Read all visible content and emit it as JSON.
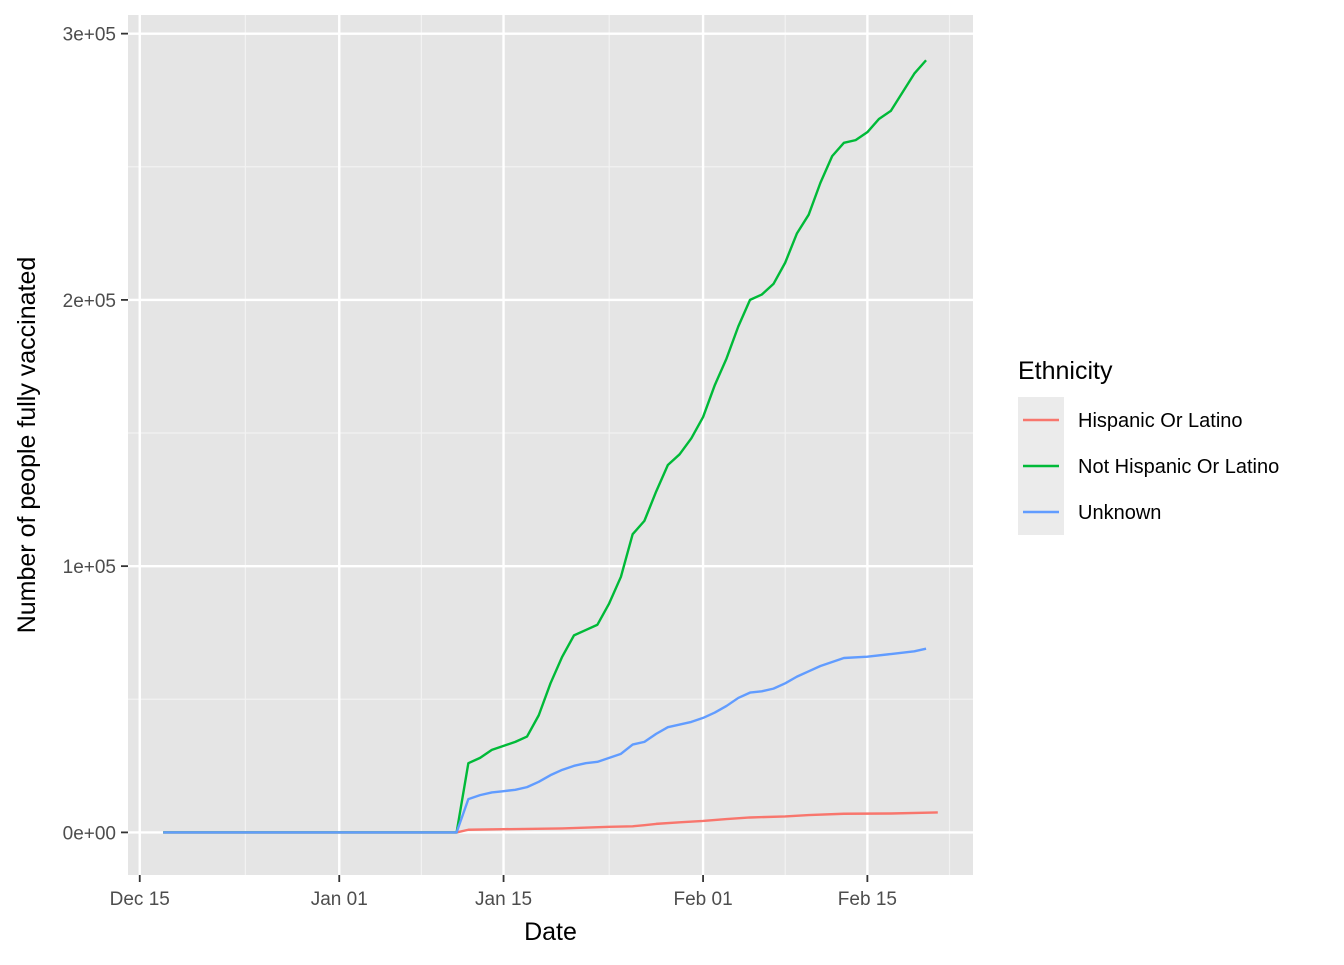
{
  "chart_data": {
    "type": "line",
    "title": "",
    "xlabel": "Date",
    "ylabel": "Number of people fully vaccinated",
    "x_axis": {
      "type": "date",
      "range": [
        "2020-12-14",
        "2021-02-24"
      ],
      "ticks": [
        {
          "date": "2020-12-15",
          "label": "Dec 15"
        },
        {
          "date": "2021-01-01",
          "label": "Jan 01"
        },
        {
          "date": "2021-01-15",
          "label": "Jan 15"
        },
        {
          "date": "2021-02-01",
          "label": "Feb 01"
        },
        {
          "date": "2021-02-15",
          "label": "Feb 15"
        }
      ],
      "minor_ticks": [
        "2020-12-24",
        "2021-01-08",
        "2021-01-24",
        "2021-02-08",
        "2021-02-22"
      ]
    },
    "y_axis": {
      "range": [
        -16000,
        307000
      ],
      "ticks": [
        {
          "value": 0,
          "label": "0e+00"
        },
        {
          "value": 100000,
          "label": "1e+05"
        },
        {
          "value": 200000,
          "label": "2e+05"
        },
        {
          "value": 300000,
          "label": "3e+05"
        }
      ],
      "minor_ticks": [
        50000,
        150000,
        250000
      ]
    },
    "grid": true,
    "background": "#e5e5e5",
    "legend": {
      "title": "Ethnicity",
      "position": "right"
    },
    "series": [
      {
        "name": "Hispanic Or Latino",
        "color": "#F8766D",
        "points": [
          [
            "2020-12-17",
            0
          ],
          [
            "2021-01-11",
            0
          ],
          [
            "2021-01-12",
            1000
          ],
          [
            "2021-01-15",
            1200
          ],
          [
            "2021-01-20",
            1500
          ],
          [
            "2021-01-24",
            2100
          ],
          [
            "2021-01-26",
            2300
          ],
          [
            "2021-01-27",
            2700
          ],
          [
            "2021-01-28",
            3200
          ],
          [
            "2021-01-30",
            3800
          ],
          [
            "2021-02-01",
            4300
          ],
          [
            "2021-02-03",
            5000
          ],
          [
            "2021-02-05",
            5600
          ],
          [
            "2021-02-08",
            6000
          ],
          [
            "2021-02-10",
            6500
          ],
          [
            "2021-02-13",
            7000
          ],
          [
            "2021-02-17",
            7100
          ],
          [
            "2021-02-21",
            7500
          ]
        ]
      },
      {
        "name": "Not Hispanic Or Latino",
        "color": "#00BA38",
        "points": [
          [
            "2020-12-17",
            0
          ],
          [
            "2021-01-11",
            0
          ],
          [
            "2021-01-12",
            26000
          ],
          [
            "2021-01-13",
            28000
          ],
          [
            "2021-01-14",
            31000
          ],
          [
            "2021-01-15",
            32500
          ],
          [
            "2021-01-16",
            34000
          ],
          [
            "2021-01-17",
            36000
          ],
          [
            "2021-01-18",
            44000
          ],
          [
            "2021-01-19",
            56000
          ],
          [
            "2021-01-20",
            66000
          ],
          [
            "2021-01-21",
            74000
          ],
          [
            "2021-01-22",
            76000
          ],
          [
            "2021-01-23",
            78000
          ],
          [
            "2021-01-24",
            86000
          ],
          [
            "2021-01-25",
            96000
          ],
          [
            "2021-01-26",
            112000
          ],
          [
            "2021-01-27",
            117000
          ],
          [
            "2021-01-28",
            128000
          ],
          [
            "2021-01-29",
            138000
          ],
          [
            "2021-01-30",
            142000
          ],
          [
            "2021-01-31",
            148000
          ],
          [
            "2021-02-01",
            156000
          ],
          [
            "2021-02-02",
            168000
          ],
          [
            "2021-02-03",
            178000
          ],
          [
            "2021-02-04",
            190000
          ],
          [
            "2021-02-05",
            200000
          ],
          [
            "2021-02-06",
            202000
          ],
          [
            "2021-02-07",
            206000
          ],
          [
            "2021-02-08",
            214000
          ],
          [
            "2021-02-09",
            225000
          ],
          [
            "2021-02-10",
            232000
          ],
          [
            "2021-02-11",
            244000
          ],
          [
            "2021-02-12",
            254000
          ],
          [
            "2021-02-13",
            259000
          ],
          [
            "2021-02-14",
            260000
          ],
          [
            "2021-02-15",
            263000
          ],
          [
            "2021-02-16",
            268000
          ],
          [
            "2021-02-17",
            271000
          ],
          [
            "2021-02-18",
            278000
          ],
          [
            "2021-02-19",
            285000
          ],
          [
            "2021-02-20",
            290000
          ]
        ]
      },
      {
        "name": "Unknown",
        "color": "#619CFF",
        "points": [
          [
            "2020-12-17",
            0
          ],
          [
            "2021-01-11",
            0
          ],
          [
            "2021-01-12",
            12500
          ],
          [
            "2021-01-13",
            14000
          ],
          [
            "2021-01-14",
            15000
          ],
          [
            "2021-01-15",
            15500
          ],
          [
            "2021-01-16",
            16000
          ],
          [
            "2021-01-17",
            17000
          ],
          [
            "2021-01-18",
            19000
          ],
          [
            "2021-01-19",
            21500
          ],
          [
            "2021-01-20",
            23500
          ],
          [
            "2021-01-21",
            25000
          ],
          [
            "2021-01-22",
            26000
          ],
          [
            "2021-01-23",
            26500
          ],
          [
            "2021-01-24",
            28000
          ],
          [
            "2021-01-25",
            29500
          ],
          [
            "2021-01-26",
            33000
          ],
          [
            "2021-01-27",
            34000
          ],
          [
            "2021-01-28",
            37000
          ],
          [
            "2021-01-29",
            39500
          ],
          [
            "2021-01-30",
            40500
          ],
          [
            "2021-01-31",
            41500
          ],
          [
            "2021-02-01",
            43000
          ],
          [
            "2021-02-02",
            45000
          ],
          [
            "2021-02-03",
            47500
          ],
          [
            "2021-02-04",
            50500
          ],
          [
            "2021-02-05",
            52500
          ],
          [
            "2021-02-06",
            53000
          ],
          [
            "2021-02-07",
            54000
          ],
          [
            "2021-02-08",
            56000
          ],
          [
            "2021-02-09",
            58500
          ],
          [
            "2021-02-10",
            60500
          ],
          [
            "2021-02-11",
            62500
          ],
          [
            "2021-02-12",
            64000
          ],
          [
            "2021-02-13",
            65500
          ],
          [
            "2021-02-15",
            66000
          ],
          [
            "2021-02-17",
            67000
          ],
          [
            "2021-02-19",
            68000
          ],
          [
            "2021-02-20",
            69000
          ]
        ]
      }
    ]
  }
}
